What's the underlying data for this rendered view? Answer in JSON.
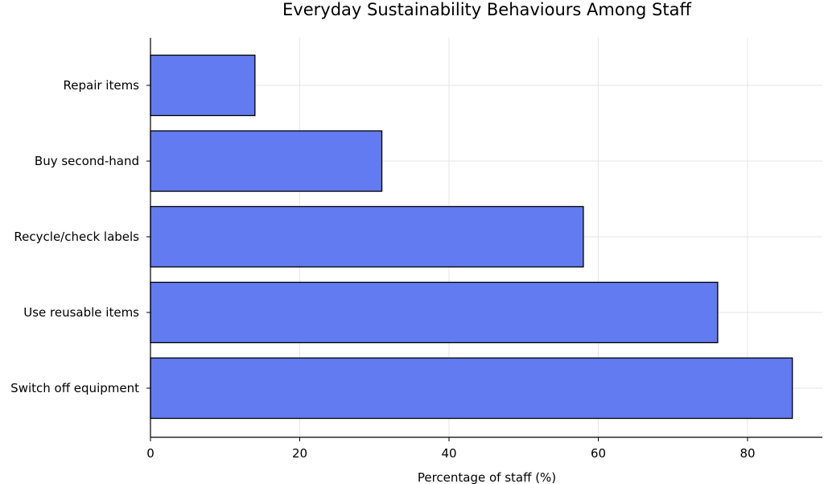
{
  "chart_data": {
    "type": "bar",
    "orientation": "horizontal",
    "title": "Everyday Sustainability Behaviours Among Staff",
    "xlabel": "Percentage of staff (%)",
    "ylabel": "",
    "categories": [
      "Switch off equipment",
      "Use reusable items",
      "Recycle/check labels",
      "Buy second-hand",
      "Repair items"
    ],
    "values": [
      86,
      76,
      58,
      31,
      14
    ],
    "xlim": [
      0,
      90
    ],
    "xticks": [
      0,
      20,
      40,
      60,
      80
    ],
    "grid": true,
    "bar_color": "#637bf0"
  }
}
